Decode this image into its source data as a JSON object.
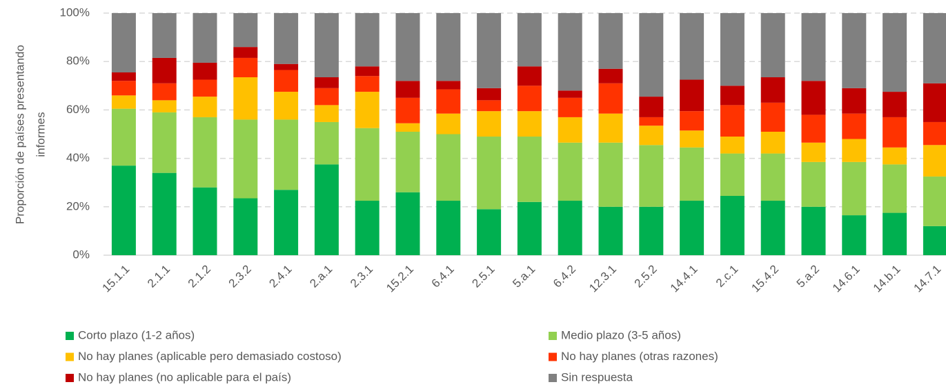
{
  "chart_data": {
    "type": "stacked_bar",
    "y_label": [
      "Proporción de países presentando",
      "informes"
    ],
    "categories": [
      "15.1.1",
      "2.1.1",
      "2.1.2",
      "2.3.2",
      "2.4.1",
      "2.a.1",
      "2.3.1",
      "15.2.1",
      "6.4.1",
      "2.5.1",
      "5.a.1",
      "6.4.2",
      "12.3.1",
      "2.5.2",
      "14.4.1",
      "2.c.1",
      "15.4.2",
      "5.a.2",
      "14.6.1",
      "14.b.1",
      "14.7.1"
    ],
    "series": [
      {
        "name": "Corto plazo (1-2 años)",
        "color": "#00b050",
        "values": [
          37,
          34,
          28,
          23.5,
          27,
          37.5,
          22.5,
          26,
          22.5,
          19,
          22,
          22.5,
          20,
          20,
          22.5,
          24.5,
          22.5,
          20,
          16.5,
          17.5,
          12
        ]
      },
      {
        "name": "Medio plazo (3-5 años)",
        "color": "#92d050",
        "values": [
          23.5,
          25,
          29,
          32.5,
          29,
          17.5,
          30,
          25,
          27.5,
          30,
          27,
          24,
          26.5,
          25.5,
          22,
          17.5,
          19.5,
          18.5,
          22,
          20,
          20.5
        ]
      },
      {
        "name": "No hay planes (aplicable pero demasiado costoso)",
        "color": "#ffc000",
        "values": [
          5.5,
          5,
          8.5,
          17.5,
          11.5,
          7,
          15,
          3.5,
          8.5,
          10.5,
          10.5,
          10.5,
          12,
          8,
          7,
          7,
          9,
          8,
          9.5,
          7,
          13
        ]
      },
      {
        "name": "No hay planes (otras razones)",
        "color": "#ff3300",
        "values": [
          6,
          7,
          7,
          8,
          9,
          7,
          6.5,
          10.5,
          10,
          4.5,
          10.5,
          8,
          12.5,
          3.5,
          8,
          13,
          12,
          11.5,
          10.5,
          12.5,
          9.5
        ]
      },
      {
        "name": "No hay planes (no aplicable para el país)",
        "color": "#c00000",
        "values": [
          3.5,
          10.5,
          7,
          4.5,
          2.5,
          4.5,
          4,
          7,
          3.5,
          5,
          8,
          3,
          6,
          8.5,
          13,
          8,
          10.5,
          14,
          10.5,
          10.5,
          16
        ]
      },
      {
        "name": "Sin respuesta",
        "color": "#808080",
        "values": [
          24.5,
          18.5,
          20.5,
          14,
          21,
          26.5,
          22,
          28,
          28,
          31,
          22,
          32,
          23,
          34.5,
          27.5,
          30,
          26.5,
          28,
          31,
          32.5,
          29
        ]
      }
    ],
    "ylim": [
      0,
      100
    ],
    "yticks": [
      {
        "value": 0,
        "label": "0%"
      },
      {
        "value": 20,
        "label": "20%"
      },
      {
        "value": 40,
        "label": "40%"
      },
      {
        "value": 60,
        "label": "60%"
      },
      {
        "value": 80,
        "label": "80%"
      },
      {
        "value": 100,
        "label": "100%"
      }
    ],
    "grid": true,
    "legend": "bottom"
  }
}
